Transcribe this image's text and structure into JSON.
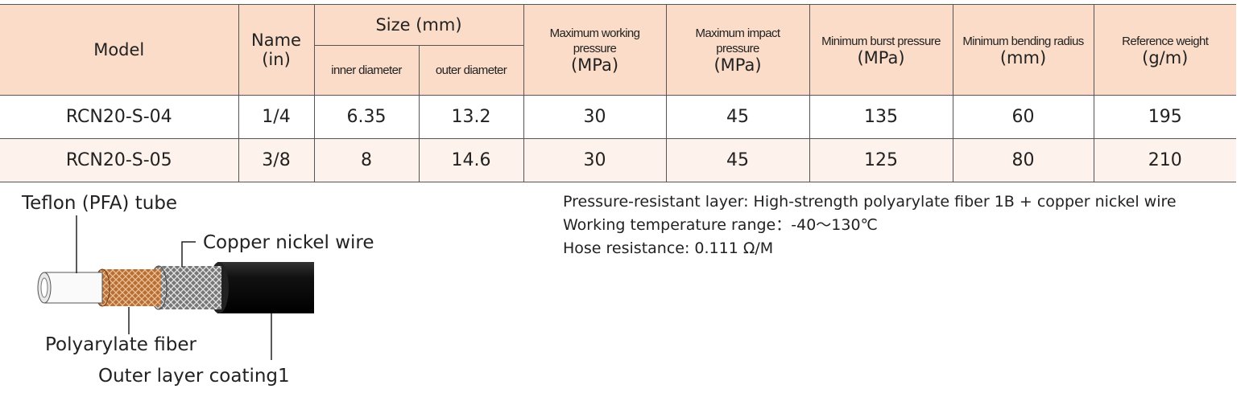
{
  "table": {
    "header": {
      "model": "Model",
      "name": [
        "Name",
        "(in)"
      ],
      "size": "Size (mm)",
      "inner": "inner diameter",
      "outer": "outer diameter",
      "max_working": [
        "Maximum working",
        "pressure",
        "(MPa)"
      ],
      "max_impact": [
        "Maximum impact",
        "pressure",
        "(MPa)"
      ],
      "burst": [
        "Minimum burst pressure",
        "(MPa)"
      ],
      "bending": [
        "Minimum bending radius",
        "(mm)"
      ],
      "weight": [
        "Reference weight",
        "(g/m)"
      ]
    },
    "rows": [
      [
        "RCN20-S-04",
        "1/4",
        6.35,
        13.2,
        30,
        45,
        135,
        60,
        195
      ],
      [
        "RCN20-S-05",
        "3/8",
        8,
        14.6,
        30,
        45,
        125,
        80,
        210
      ]
    ]
  },
  "diagram": {
    "labels": [
      "Teflon (PFA) tube",
      "Copper nickel wire",
      "Polyarylate fiber",
      "Outer layer coating1"
    ]
  },
  "notes": [
    "Pressure-resistant layer: High-strength polyarylate fiber 1B + copper nickel wire",
    "Working temperature range：-40～130℃",
    "Hose resistance: 0.111 Ω/M"
  ]
}
